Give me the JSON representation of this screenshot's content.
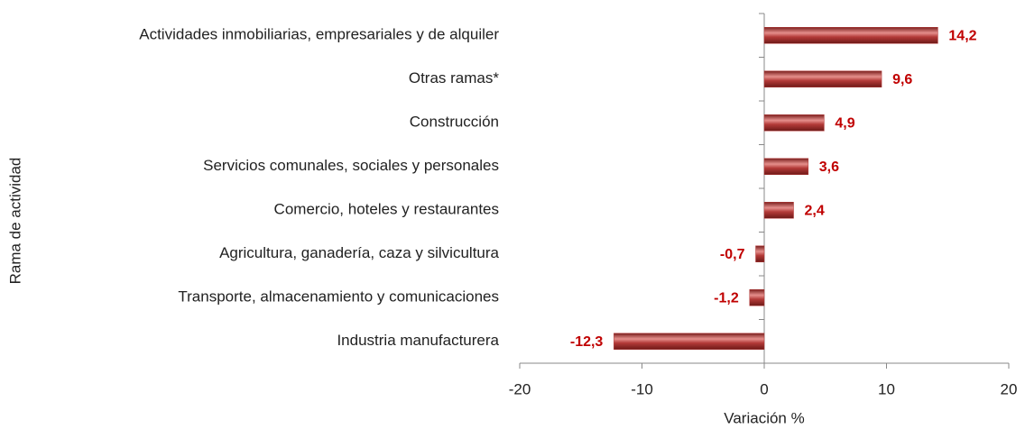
{
  "chart_data": {
    "type": "hbar",
    "categories": [
      "Actividades inmobiliarias, empresariales y de alquiler",
      "Otras ramas*",
      "Construcción",
      "Servicios comunales, sociales y personales",
      "Comercio, hoteles y restaurantes",
      "Agricultura, ganadería, caza y silvicultura",
      "Transporte, almacenamiento y comunicaciones",
      "Industria manufacturera"
    ],
    "values": [
      14.2,
      9.6,
      4.9,
      3.6,
      2.4,
      -0.7,
      -1.2,
      -12.3
    ],
    "value_labels": [
      "14,2",
      "9,6",
      "4,9",
      "3,6",
      "2,4",
      "-0,7",
      "-1,2",
      "-12,3"
    ],
    "color": "#b33a38",
    "label_color": "#c00000",
    "xlim": [
      -20,
      20
    ],
    "xticks": [
      -20,
      -10,
      0,
      10,
      20
    ],
    "xlabel": "Variación %",
    "ylabel": "Rama de actividad"
  }
}
